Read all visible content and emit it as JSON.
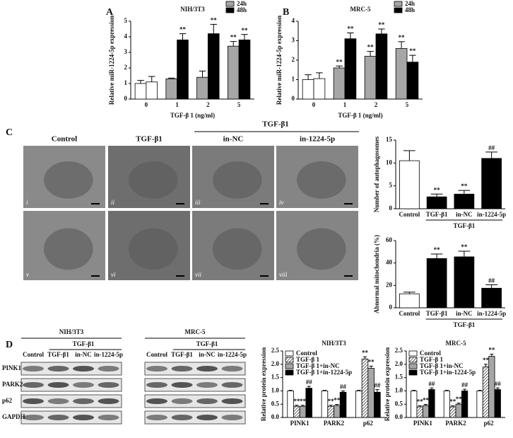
{
  "panel_labels": [
    "A",
    "B",
    "C",
    "D"
  ],
  "em": {
    "group_header": "TGF-β1",
    "columns": [
      "Control",
      "TGF-β1",
      "in-NC",
      "in-1224-5p"
    ],
    "numerals": [
      "i",
      "ii",
      "iii",
      "iv",
      "v",
      "vi",
      "vii",
      "viii"
    ]
  },
  "blots": {
    "cell_lines": [
      "NIH/3T3",
      "MRC-5"
    ],
    "group_header": "TGF-β1",
    "lanes": [
      "Control",
      "TGF-β1",
      "in-NC",
      "in-1224-5p"
    ],
    "proteins": [
      "PINK1",
      "PARK2",
      "p62",
      "GAPDH"
    ]
  },
  "chart_data": [
    {
      "type": "bar",
      "title": "NIH/3T3",
      "y_label": "Relative miR-1224-5p expression",
      "x_label": "TGF-β 1 (ng/ml)",
      "categories": [
        "0",
        "1",
        "2",
        "5"
      ],
      "ylim": [
        0,
        5
      ],
      "yticks": [
        0,
        1,
        2,
        3,
        4,
        5
      ],
      "legend": "upper right",
      "series": [
        {
          "name": "24h",
          "color": "#a6a6a6",
          "colors": [
            "#ffffff",
            "#a6a6a6",
            "#a6a6a6",
            "#a6a6a6"
          ],
          "values": [
            1.0,
            1.3,
            1.4,
            3.4
          ],
          "errors": [
            0.2,
            0.05,
            0.4,
            0.3
          ],
          "significance": [
            null,
            null,
            null,
            "**"
          ]
        },
        {
          "name": "48h",
          "color": "#000000",
          "colors": [
            "#ffffff",
            "#000000",
            "#000000",
            "#000000"
          ],
          "values": [
            1.1,
            3.8,
            4.2,
            3.8
          ],
          "errors": [
            0.35,
            0.4,
            0.6,
            0.35
          ],
          "significance": [
            null,
            "**",
            "**",
            "**"
          ]
        }
      ]
    },
    {
      "type": "bar",
      "title": "MRC-5",
      "y_label": "Relative miR-1224-5p expression",
      "x_label": "TGF-β 1 (ng/ml)",
      "categories": [
        "0",
        "1",
        "2",
        "5"
      ],
      "ylim": [
        0,
        4
      ],
      "yticks": [
        0,
        1,
        2,
        3,
        4
      ],
      "legend": "upper right",
      "series": [
        {
          "name": "24h",
          "color": "#a6a6a6",
          "colors": [
            "#ffffff",
            "#a6a6a6",
            "#a6a6a6",
            "#a6a6a6"
          ],
          "values": [
            1.0,
            1.6,
            2.2,
            2.6
          ],
          "errors": [
            0.25,
            0.1,
            0.25,
            0.35
          ],
          "significance": [
            null,
            "**",
            "**",
            "**"
          ]
        },
        {
          "name": "48h",
          "color": "#000000",
          "colors": [
            "#ffffff",
            "#000000",
            "#000000",
            "#000000"
          ],
          "values": [
            1.05,
            3.1,
            3.35,
            1.9
          ],
          "errors": [
            0.3,
            0.3,
            0.25,
            0.35
          ],
          "significance": [
            null,
            "**",
            "**",
            "**"
          ]
        }
      ]
    },
    {
      "type": "bar",
      "y_label": "Number of autophagosomes",
      "group_label": "TGF-β1",
      "categories": [
        "Control",
        "TGF-β1",
        "in-NC",
        "in-1224-5p"
      ],
      "ylim": [
        0,
        15
      ],
      "yticks": [
        0,
        5,
        10,
        15
      ],
      "values": [
        10.5,
        2.6,
        3.2,
        11.0
      ],
      "errors": [
        2.2,
        0.6,
        0.8,
        1.4
      ],
      "colors": [
        "#ffffff",
        "#000000",
        "#000000",
        "#000000"
      ],
      "significance": [
        null,
        "**",
        "**",
        "##"
      ]
    },
    {
      "type": "bar",
      "y_label": "Abnormal mitochondria (%)",
      "group_label": "TGF-β1",
      "categories": [
        "Control",
        "TGF-β1",
        "in-NC",
        "in-1224-5p"
      ],
      "ylim": [
        0,
        60
      ],
      "yticks": [
        0,
        20,
        40,
        60
      ],
      "values": [
        12.5,
        44,
        45.5,
        17.5
      ],
      "errors": [
        1.5,
        4,
        5,
        3
      ],
      "colors": [
        "#ffffff",
        "#000000",
        "#000000",
        "#000000"
      ],
      "significance": [
        null,
        "**",
        "**",
        "##"
      ]
    },
    {
      "type": "bar",
      "title": "NIH/3T3",
      "y_label": "Relative protein expression",
      "categories": [
        "PINK1",
        "PARK2",
        "p62"
      ],
      "ylim": [
        0,
        2.5
      ],
      "yticks": [
        {
          "value": 0,
          "label": "0.0"
        },
        {
          "value": 0.5,
          "label": "0.5"
        },
        {
          "value": 1,
          "label": "1.0"
        },
        {
          "value": 1.5,
          "label": "1.5"
        },
        {
          "value": 2,
          "label": "2.0"
        },
        {
          "value": 2.5,
          "label": "2.5"
        }
      ],
      "legend": "upper left",
      "series": [
        {
          "name": "Control",
          "color": "#ffffff",
          "values": [
            1,
            1,
            1
          ],
          "errors": [
            0.02,
            0.02,
            0.02
          ],
          "significance": [
            null,
            null,
            null
          ]
        },
        {
          "name": "TGF-β 1",
          "color": "#ffffff",
          "hatch": true,
          "values": [
            0.42,
            0.42,
            2.2
          ],
          "errors": [
            0.04,
            0.04,
            0.08
          ],
          "significance": [
            "**",
            "**",
            "**"
          ]
        },
        {
          "name": "TGF-β 1+in-NC",
          "color": "#a6a6a6",
          "values": [
            0.42,
            0.45,
            1.85
          ],
          "errors": [
            0.04,
            0.04,
            0.08
          ],
          "significance": [
            "**",
            "**",
            "**"
          ]
        },
        {
          "name": "TGF-β 1+in-1224-5p",
          "color": "#000000",
          "values": [
            1.1,
            0.95,
            0.95
          ],
          "errors": [
            0.07,
            0.05,
            0.1
          ],
          "significance": [
            "##",
            "##",
            "##"
          ]
        }
      ]
    },
    {
      "type": "bar",
      "title": "MRC-5",
      "y_label": "Relative protein expression",
      "categories": [
        "PINK1",
        "PARK2",
        "p62"
      ],
      "ylim": [
        0,
        2.5
      ],
      "yticks": [
        {
          "value": 0,
          "label": "0.0"
        },
        {
          "value": 0.5,
          "label": "0.5"
        },
        {
          "value": 1,
          "label": "1.0"
        },
        {
          "value": 1.5,
          "label": "1.5"
        },
        {
          "value": 2,
          "label": "2.0"
        },
        {
          "value": 2.5,
          "label": "2.5"
        }
      ],
      "legend": "upper left",
      "series": [
        {
          "name": "Control",
          "color": "#ffffff",
          "values": [
            1,
            1,
            1
          ],
          "errors": [
            0.02,
            0.02,
            0.02
          ],
          "significance": [
            null,
            null,
            null
          ]
        },
        {
          "name": "TGF-β 1",
          "color": "#ffffff",
          "hatch": true,
          "values": [
            0.4,
            0.4,
            1.9
          ],
          "errors": [
            0.04,
            0.04,
            0.1
          ],
          "significance": [
            "**",
            "**",
            "**"
          ]
        },
        {
          "name": "TGF-β 1+in-NC",
          "color": "#a6a6a6",
          "values": [
            0.45,
            0.5,
            2.3
          ],
          "errors": [
            0.04,
            0.04,
            0.08
          ],
          "significance": [
            "**",
            "**",
            "**"
          ]
        },
        {
          "name": "TGF-β 1+in-1224-5p",
          "color": "#000000",
          "values": [
            1.05,
            1.0,
            1.05
          ],
          "errors": [
            0.06,
            0.06,
            0.06
          ],
          "significance": [
            "##",
            "##",
            "##"
          ]
        }
      ]
    }
  ]
}
